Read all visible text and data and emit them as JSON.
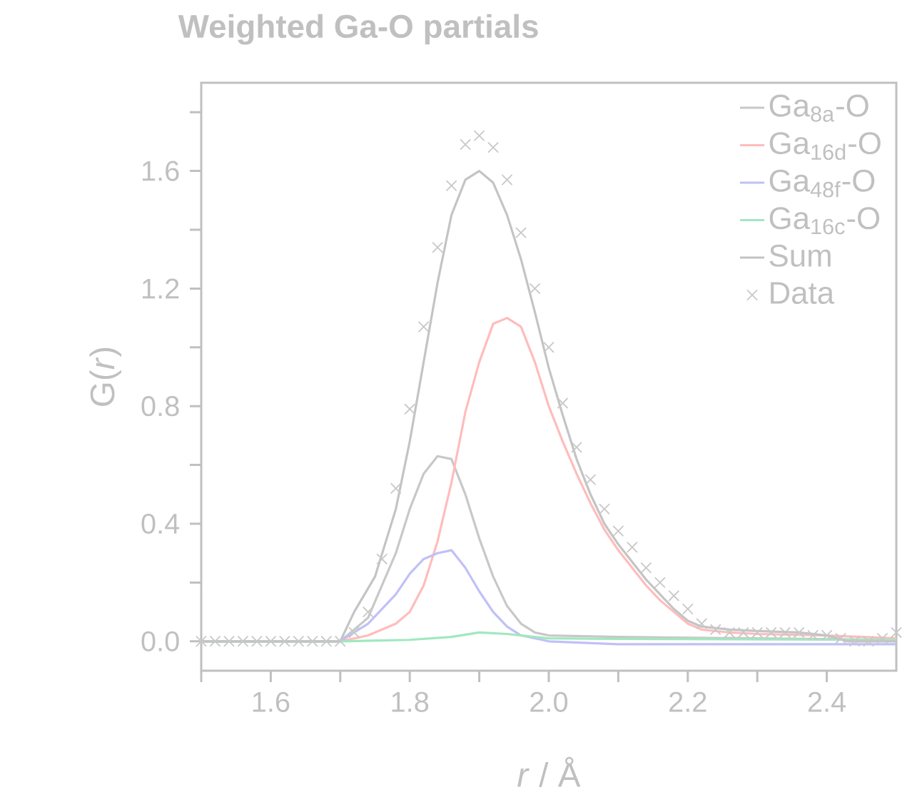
{
  "chart_data": {
    "type": "line",
    "title": "Weighted  Ga-O partials",
    "xlabel": "*r* / Å",
    "ylabel": "G(*r*)",
    "xlim": [
      1.5,
      2.5
    ],
    "ylim": [
      -0.1,
      1.9
    ],
    "xticks": [
      {
        "value": 1.5,
        "label": null
      },
      {
        "value": 1.6,
        "label": "1.6"
      },
      {
        "value": 1.7,
        "label": null
      },
      {
        "value": 1.8,
        "label": "1.8"
      },
      {
        "value": 1.9,
        "label": null
      },
      {
        "value": 2.0,
        "label": "2.0"
      },
      {
        "value": 2.1,
        "label": null
      },
      {
        "value": 2.2,
        "label": "2.2"
      },
      {
        "value": 2.3,
        "label": null
      },
      {
        "value": 2.4,
        "label": "2.4"
      }
    ],
    "yticks": [
      {
        "value": 0,
        "label": "0.0"
      },
      {
        "value": 0.2,
        "label": null
      },
      {
        "value": 0.4,
        "label": "0.4"
      },
      {
        "value": 0.6,
        "label": null
      },
      {
        "value": 0.8,
        "label": "0.8"
      },
      {
        "value": 1.0,
        "label": null
      },
      {
        "value": 1.2,
        "label": "1.2"
      },
      {
        "value": 1.4,
        "label": null
      },
      {
        "value": 1.6,
        "label": "1.6"
      },
      {
        "value": 1.8,
        "label": null
      }
    ],
    "legend": "top right",
    "series": [
      {
        "name": "Ga$_{8a}$-O",
        "color": "#c8c8c8",
        "x": [
          1.5,
          1.7,
          1.74,
          1.78,
          1.8,
          1.82,
          1.84,
          1.86,
          1.88,
          1.9,
          1.92,
          1.94,
          1.96,
          1.98,
          2.0,
          2.1,
          2.3,
          2.5
        ],
        "values": [
          0,
          0,
          0.08,
          0.3,
          0.45,
          0.57,
          0.63,
          0.62,
          0.5,
          0.35,
          0.22,
          0.12,
          0.06,
          0.03,
          0.02,
          0.015,
          0.01,
          0.005
        ]
      },
      {
        "name": "Ga$_{16d}$-O",
        "color": "#ffbcbc",
        "x": [
          1.5,
          1.7,
          1.74,
          1.78,
          1.8,
          1.82,
          1.84,
          1.86,
          1.88,
          1.9,
          1.92,
          1.94,
          1.96,
          1.98,
          2.0,
          2.02,
          2.04,
          2.06,
          2.08,
          2.1,
          2.12,
          2.14,
          2.16,
          2.18,
          2.2,
          2.22,
          2.26,
          2.3,
          2.4,
          2.5
        ],
        "values": [
          0,
          0,
          0.02,
          0.06,
          0.1,
          0.19,
          0.34,
          0.54,
          0.78,
          0.95,
          1.08,
          1.1,
          1.07,
          0.95,
          0.8,
          0.68,
          0.57,
          0.47,
          0.38,
          0.31,
          0.25,
          0.19,
          0.14,
          0.1,
          0.06,
          0.04,
          0.03,
          0.025,
          0.02,
          0.01
        ]
      },
      {
        "name": "Ga$_{48f}$-O",
        "color": "#c0c0f8",
        "x": [
          1.5,
          1.7,
          1.74,
          1.78,
          1.8,
          1.82,
          1.84,
          1.86,
          1.88,
          1.9,
          1.92,
          1.94,
          1.96,
          2.0,
          2.1,
          2.5
        ],
        "values": [
          0,
          0,
          0.06,
          0.16,
          0.23,
          0.28,
          0.3,
          0.31,
          0.25,
          0.17,
          0.1,
          0.05,
          0.02,
          0,
          -0.01,
          -0.01
        ]
      },
      {
        "name": "Ga$_{16c}$-O",
        "color": "#a0e8c0",
        "x": [
          1.5,
          1.7,
          1.8,
          1.86,
          1.9,
          1.94,
          2.0,
          2.1,
          2.5
        ],
        "values": [
          0,
          0,
          0.005,
          0.015,
          0.03,
          0.025,
          0.01,
          0.008,
          0.005
        ]
      },
      {
        "name": "Sum",
        "color": "#c4c4c4",
        "x": [
          1.5,
          1.7,
          1.72,
          1.75,
          1.78,
          1.8,
          1.82,
          1.84,
          1.86,
          1.88,
          1.9,
          1.92,
          1.94,
          1.96,
          1.98,
          2.0,
          2.02,
          2.04,
          2.06,
          2.08,
          2.1,
          2.12,
          2.14,
          2.16,
          2.18,
          2.2,
          2.22,
          2.26,
          2.3,
          2.36,
          2.4,
          2.43,
          2.5
        ],
        "values": [
          0,
          0,
          0.1,
          0.22,
          0.45,
          0.68,
          0.95,
          1.22,
          1.45,
          1.57,
          1.6,
          1.56,
          1.45,
          1.3,
          1.12,
          0.93,
          0.77,
          0.62,
          0.5,
          0.4,
          0.33,
          0.27,
          0.21,
          0.16,
          0.11,
          0.07,
          0.05,
          0.04,
          0.035,
          0.03,
          0.02,
          0,
          0
        ]
      },
      {
        "name": "Data",
        "type": "scatter",
        "marker": "cross",
        "color": "#c8c8c8",
        "x": [
          1.5,
          1.52,
          1.54,
          1.56,
          1.58,
          1.6,
          1.62,
          1.64,
          1.66,
          1.68,
          1.7,
          1.72,
          1.74,
          1.76,
          1.78,
          1.8,
          1.82,
          1.84,
          1.86,
          1.88,
          1.9,
          1.92,
          1.94,
          1.96,
          1.98,
          2.0,
          2.02,
          2.04,
          2.06,
          2.08,
          2.1,
          2.12,
          2.14,
          2.16,
          2.18,
          2.2,
          2.22,
          2.24,
          2.26,
          2.28,
          2.3,
          2.32,
          2.34,
          2.36,
          2.38,
          2.4,
          2.42,
          2.44,
          2.46,
          2.48,
          2.5
        ],
        "values": [
          0,
          0,
          0,
          0,
          0,
          0,
          0,
          0,
          0,
          0,
          0,
          0.03,
          0.1,
          0.28,
          0.52,
          0.79,
          1.07,
          1.34,
          1.55,
          1.69,
          1.72,
          1.68,
          1.57,
          1.39,
          1.2,
          1.0,
          0.81,
          0.66,
          0.55,
          0.45,
          0.375,
          0.32,
          0.25,
          0.2,
          0.155,
          0.11,
          0.06,
          0.04,
          0.03,
          0.03,
          0.03,
          0.03,
          0.03,
          0.03,
          0.02,
          0.02,
          0.01,
          0,
          0,
          0.01,
          0.03
        ]
      }
    ]
  }
}
